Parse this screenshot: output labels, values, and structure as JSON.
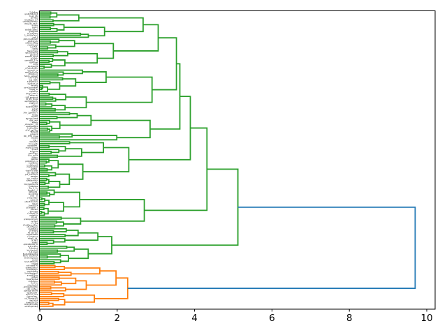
{
  "window": {
    "background": "#ffffff",
    "title": ""
  },
  "chart_data": {
    "type": "dendrogram",
    "orientation": "right",
    "title": "",
    "xlabel": "",
    "ylabel": "",
    "grid": false,
    "legend": null,
    "xlim": [
      0,
      10.2
    ],
    "x_ticks": [
      0,
      2,
      4,
      6,
      8,
      10
    ],
    "x_tick_labels": [
      "0",
      "2",
      "4",
      "6",
      "8",
      "10"
    ],
    "total_leaves": 153,
    "leaf_labels_legible": false,
    "root_merge_height": 9.7,
    "color_threshold": 6.79,
    "colors": {
      "above_threshold_link": "#1f77b4",
      "cluster_top": "#2ca02c",
      "cluster_bottom": "#ff7f0e",
      "axis": "#000000",
      "background": "#ffffff"
    },
    "clusters": [
      {
        "name": "green-cluster",
        "color": "#2ca02c",
        "leaf_count": 131,
        "merge_height": 5.12
      },
      {
        "name": "orange-cluster",
        "color": "#ff7f0e",
        "leaf_count": 22,
        "merge_height": 2.27
      }
    ],
    "tree": {
      "height": 9.7,
      "children": [
        {
          "height": 5.12,
          "children": [
            {
              "height": 4.32,
              "children": [
                {
                  "height": 3.89,
                  "children": [
                    {
                      "height": 3.62,
                      "children": [
                        {
                          "height": 3.53,
                          "children": [
                            {
                              "height": 3.06,
                              "children": [
                                {
                                  "leaves": 14,
                                  "height": 2.67
                                },
                                {
                                  "leaves": 16,
                                  "height": 1.9
                                }
                              ]
                            },
                            {
                              "leaves": 22,
                              "height": 2.9
                            }
                          ]
                        },
                        {
                          "leaves": 15,
                          "height": 2.85
                        }
                      ]
                    },
                    {
                      "leaves": 25,
                      "height": 2.3
                    }
                  ]
                },
                {
                  "leaves": 20,
                  "height": 2.7
                }
              ]
            },
            {
              "height": 1.86,
              "children": [
                {
                  "leaves": 9,
                  "height": 1.5
                },
                {
                  "leaves": 10,
                  "height": 1.25
                }
              ]
            }
          ]
        },
        {
          "height": 2.27,
          "children": [
            {
              "height": 1.97,
              "children": [
                {
                  "leaves": 6,
                  "height": 1.55
                },
                {
                  "leaves": 8,
                  "height": 1.2
                }
              ]
            },
            {
              "leaves": 8,
              "height": 1.41
            }
          ]
        }
      ]
    }
  },
  "render": {
    "seed": 12,
    "label_seed": 99,
    "leaf_label_char_pool": "abcdefghijkmnopqrstuvwxyz0123456789()--__"
  }
}
